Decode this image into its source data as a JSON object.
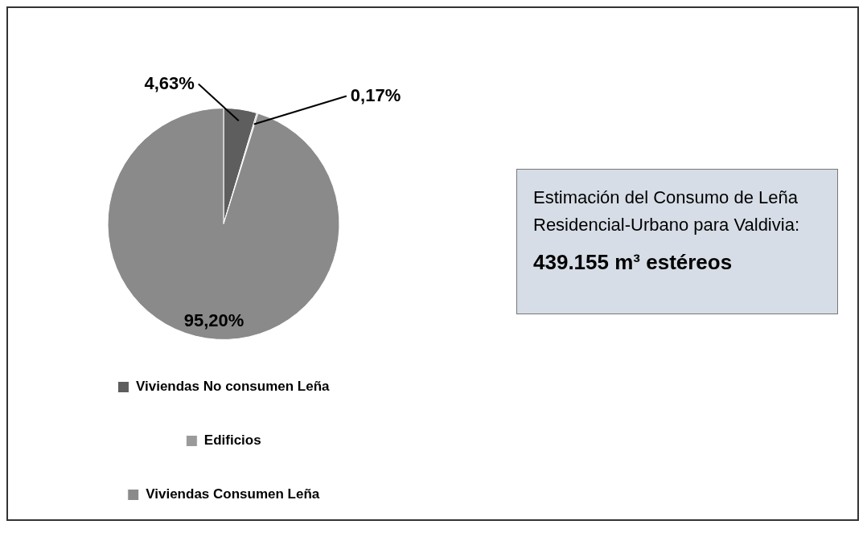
{
  "chart_data": {
    "type": "pie",
    "categories": [
      "Viviendas No consumen Leña",
      "Edificios",
      "Viviendas Consumen Leña"
    ],
    "values": [
      4.63,
      0.17,
      95.2
    ],
    "colors": [
      "#5e5e5e",
      "#9a9a9a",
      "#8a8a8a"
    ],
    "value_labels": [
      "4,63%",
      "0,17%",
      "95,20%"
    ],
    "legend": "bottom",
    "annotations": [
      "Estimación del Consumo de Leña  Residencial-Urbano para Valdivia:",
      "439.155 m³ estéreos"
    ]
  }
}
